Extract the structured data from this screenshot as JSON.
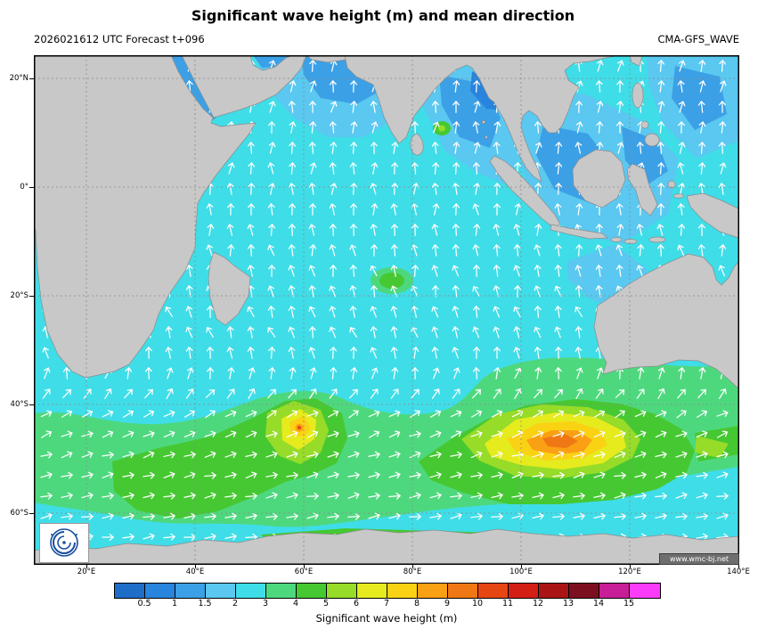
{
  "header": {
    "title": "Significant wave height (m) and mean direction",
    "subtitle_left": "2026021612 UTC Forecast t+096",
    "subtitle_right": "CMA-GFS_WAVE"
  },
  "map": {
    "lat_labels": [
      "20°N",
      "0°",
      "20°S",
      "40°S",
      "60°S"
    ],
    "lon_labels": [
      "20°E",
      "40°E",
      "60°E",
      "80°E",
      "100°E",
      "120°E",
      "140°E"
    ],
    "watermark": "www.wmc-bj.net"
  },
  "colorbar": {
    "caption": "Significant wave height (m)",
    "tick_labels": [
      "0.5",
      "1",
      "1.5",
      "2",
      "3",
      "4",
      "5",
      "6",
      "7",
      "8",
      "9",
      "10",
      "11",
      "12",
      "13",
      "14",
      "15"
    ],
    "colors": [
      "#1E6EC8",
      "#2884DC",
      "#3CA0E6",
      "#5AC8F0",
      "#3FDDE8",
      "#4ED87E",
      "#46C832",
      "#96DC28",
      "#E6EB1E",
      "#FAD214",
      "#FAA014",
      "#F07814",
      "#E64614",
      "#D21E14",
      "#AA1414",
      "#7D1020",
      "#C81E96",
      "#FA3CFA"
    ]
  },
  "chart_data": {
    "type": "heatmap",
    "title": "Significant wave height (m) and mean direction",
    "model": "CMA-GFS_WAVE",
    "forecast": "2026021612 UTC Forecast t+096",
    "units": "m",
    "x_tick_labels": [
      "20°E",
      "40°E",
      "60°E",
      "80°E",
      "100°E",
      "120°E",
      "140°E"
    ],
    "y_tick_labels": [
      "20°N",
      "0°",
      "20°S",
      "40°S",
      "60°S"
    ],
    "lon_range_deg_e": [
      10,
      140
    ],
    "lat_range_deg": [
      -70,
      25
    ],
    "colorbar_levels": [
      0.5,
      1,
      1.5,
      2,
      3,
      4,
      5,
      6,
      7,
      8,
      9,
      10,
      11,
      12,
      13,
      14,
      15
    ],
    "colorbar_colors": [
      "#1E6EC8",
      "#2884DC",
      "#3CA0E6",
      "#5AC8F0",
      "#3FDDE8",
      "#4ED87E",
      "#46C832",
      "#96DC28",
      "#E6EB1E",
      "#FAD214",
      "#FAA014",
      "#F07814",
      "#E64614",
      "#D21E14",
      "#AA1414",
      "#7D1020",
      "#C81E96",
      "#FA3CFA"
    ],
    "overlay": "mean wave direction arrows (white), pointing downwind/downswell",
    "notable_features": [
      {
        "area": "Northern Arabian Sea",
        "hs_m": "1-2"
      },
      {
        "area": "Bay of Bengal",
        "hs_m": "0.5-2"
      },
      {
        "area": "Equatorial Indian Ocean",
        "hs_m": "2-3"
      },
      {
        "area": "Small maximum east of Sri Lanka (~85E,11N)",
        "hs_m": "4-5"
      },
      {
        "area": "Local maximum near 75E,20S",
        "hs_m": "3-5"
      },
      {
        "area": "Storm near 58E,45S",
        "hs_max_m": "8-10"
      },
      {
        "area": "Large storm near 95-105E,46S",
        "hs_max_m": "9-10"
      },
      {
        "area": "Southern Ocean belt 40-60S",
        "hs_m": "3-6"
      }
    ]
  }
}
